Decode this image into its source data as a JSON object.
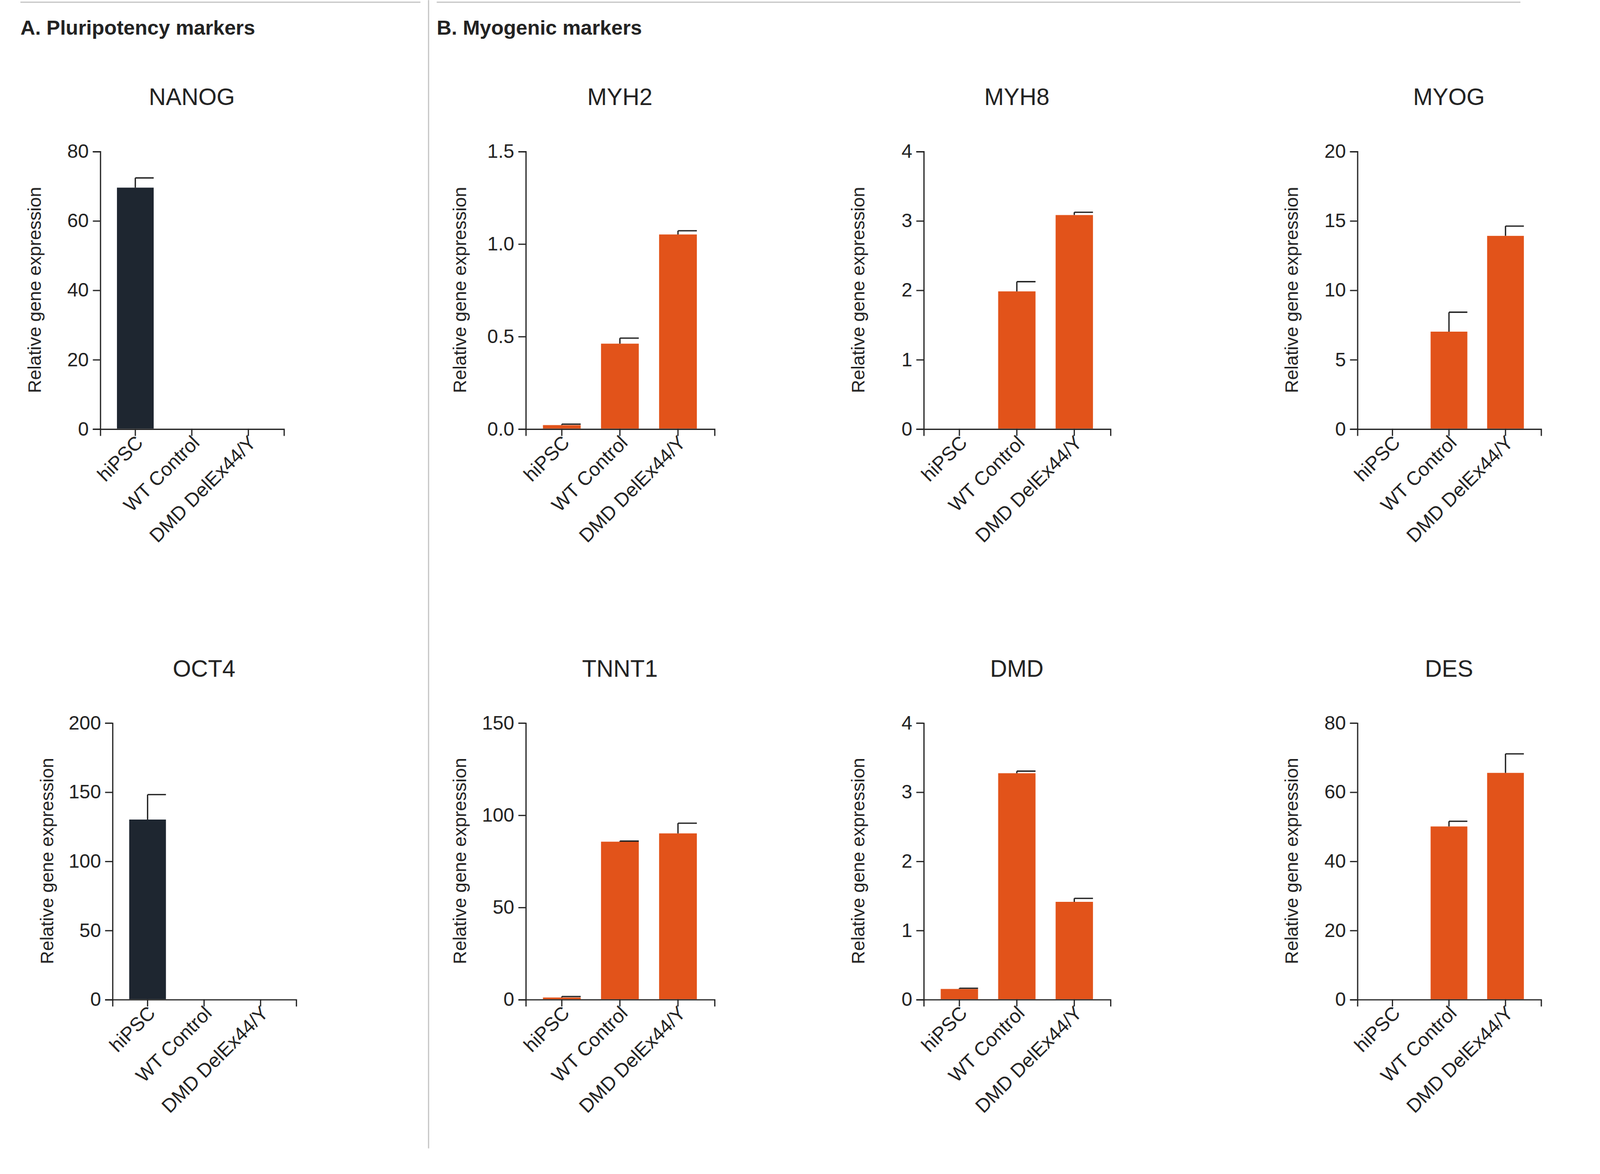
{
  "sections": [
    "A. Pluripotency markers",
    "B. Myogenic markers"
  ],
  "chart_data": [
    {
      "type": "bar",
      "title": "NANOG",
      "y_label": "Relative gene expression",
      "categories": [
        "hiPSC",
        "WT Control",
        "DMD DelEx44/Y"
      ],
      "values": [
        69.5,
        0,
        0
      ],
      "errors": [
        2.8,
        null,
        null
      ],
      "color": "#1e2630",
      "ylim": [
        0,
        80
      ],
      "yticks": [
        0,
        20,
        40,
        60,
        80
      ]
    },
    {
      "type": "bar",
      "title": "OCT4",
      "y_label": "Relative gene expression",
      "categories": [
        "hiPSC",
        "WT Control",
        "DMD DelEx44/Y"
      ],
      "values": [
        130,
        0,
        0
      ],
      "errors": [
        18,
        null,
        null
      ],
      "color": "#1e2630",
      "ylim": [
        0,
        200
      ],
      "yticks": [
        0,
        50,
        100,
        150,
        200
      ]
    },
    {
      "type": "bar",
      "title": "MYH2",
      "y_label": "Relative gene expression",
      "categories": [
        "hiPSC",
        "WT Control",
        "DMD DelEx44/Y"
      ],
      "values": [
        0.02,
        0.46,
        1.05
      ],
      "errors": [
        0.005,
        0.03,
        0.02
      ],
      "color": "#e2531a",
      "ylim": [
        0,
        1.5
      ],
      "yticks": [
        {
          "value": 0,
          "label": "0.0"
        },
        0.5,
        {
          "value": 1,
          "label": "1.0"
        },
        1.5
      ]
    },
    {
      "type": "bar",
      "title": "MYH8",
      "y_label": "Relative gene expression",
      "categories": [
        "hiPSC",
        "WT Control",
        "DMD DelEx44/Y"
      ],
      "values": [
        0,
        1.98,
        3.08
      ],
      "errors": [
        null,
        0.14,
        0.04
      ],
      "color": "#e2531a",
      "ylim": [
        0,
        4
      ],
      "yticks": [
        0,
        1,
        2,
        3,
        4
      ]
    },
    {
      "type": "bar",
      "title": "MYOG",
      "y_label": "Relative gene expression",
      "categories": [
        "hiPSC",
        "WT Control",
        "DMD DelEx44/Y"
      ],
      "values": [
        0,
        7.0,
        13.9
      ],
      "errors": [
        null,
        1.4,
        0.7
      ],
      "color": "#e2531a",
      "ylim": [
        0,
        20
      ],
      "yticks": [
        0,
        5,
        10,
        15,
        20
      ]
    },
    {
      "type": "bar",
      "title": "TNNT1",
      "y_label": "Relative gene expression",
      "categories": [
        "hiPSC",
        "WT Control",
        "DMD DelEx44/Y"
      ],
      "values": [
        1,
        85.5,
        90
      ],
      "errors": [
        0.5,
        0.3,
        5.5
      ],
      "color": "#e2531a",
      "ylim": [
        0,
        150
      ],
      "yticks": [
        0,
        50,
        100,
        150
      ]
    },
    {
      "type": "bar",
      "title": "DMD",
      "y_label": "Relative gene expression",
      "categories": [
        "hiPSC",
        "WT Control",
        "DMD DelEx44/Y"
      ],
      "values": [
        0.15,
        3.27,
        1.41
      ],
      "errors": [
        0.01,
        0.03,
        0.05
      ],
      "color": "#e2531a",
      "ylim": [
        0,
        4
      ],
      "yticks": [
        0,
        1,
        2,
        3,
        4
      ]
    },
    {
      "type": "bar",
      "title": "DES",
      "y_label": "Relative gene expression",
      "categories": [
        "hiPSC",
        "WT Control",
        "DMD DelEx44/Y"
      ],
      "values": [
        0,
        50,
        65.5
      ],
      "errors": [
        null,
        1.5,
        5.5
      ],
      "color": "#e2531a",
      "ylim": [
        0,
        80
      ],
      "yticks": [
        0,
        20,
        40,
        60,
        80
      ]
    }
  ]
}
